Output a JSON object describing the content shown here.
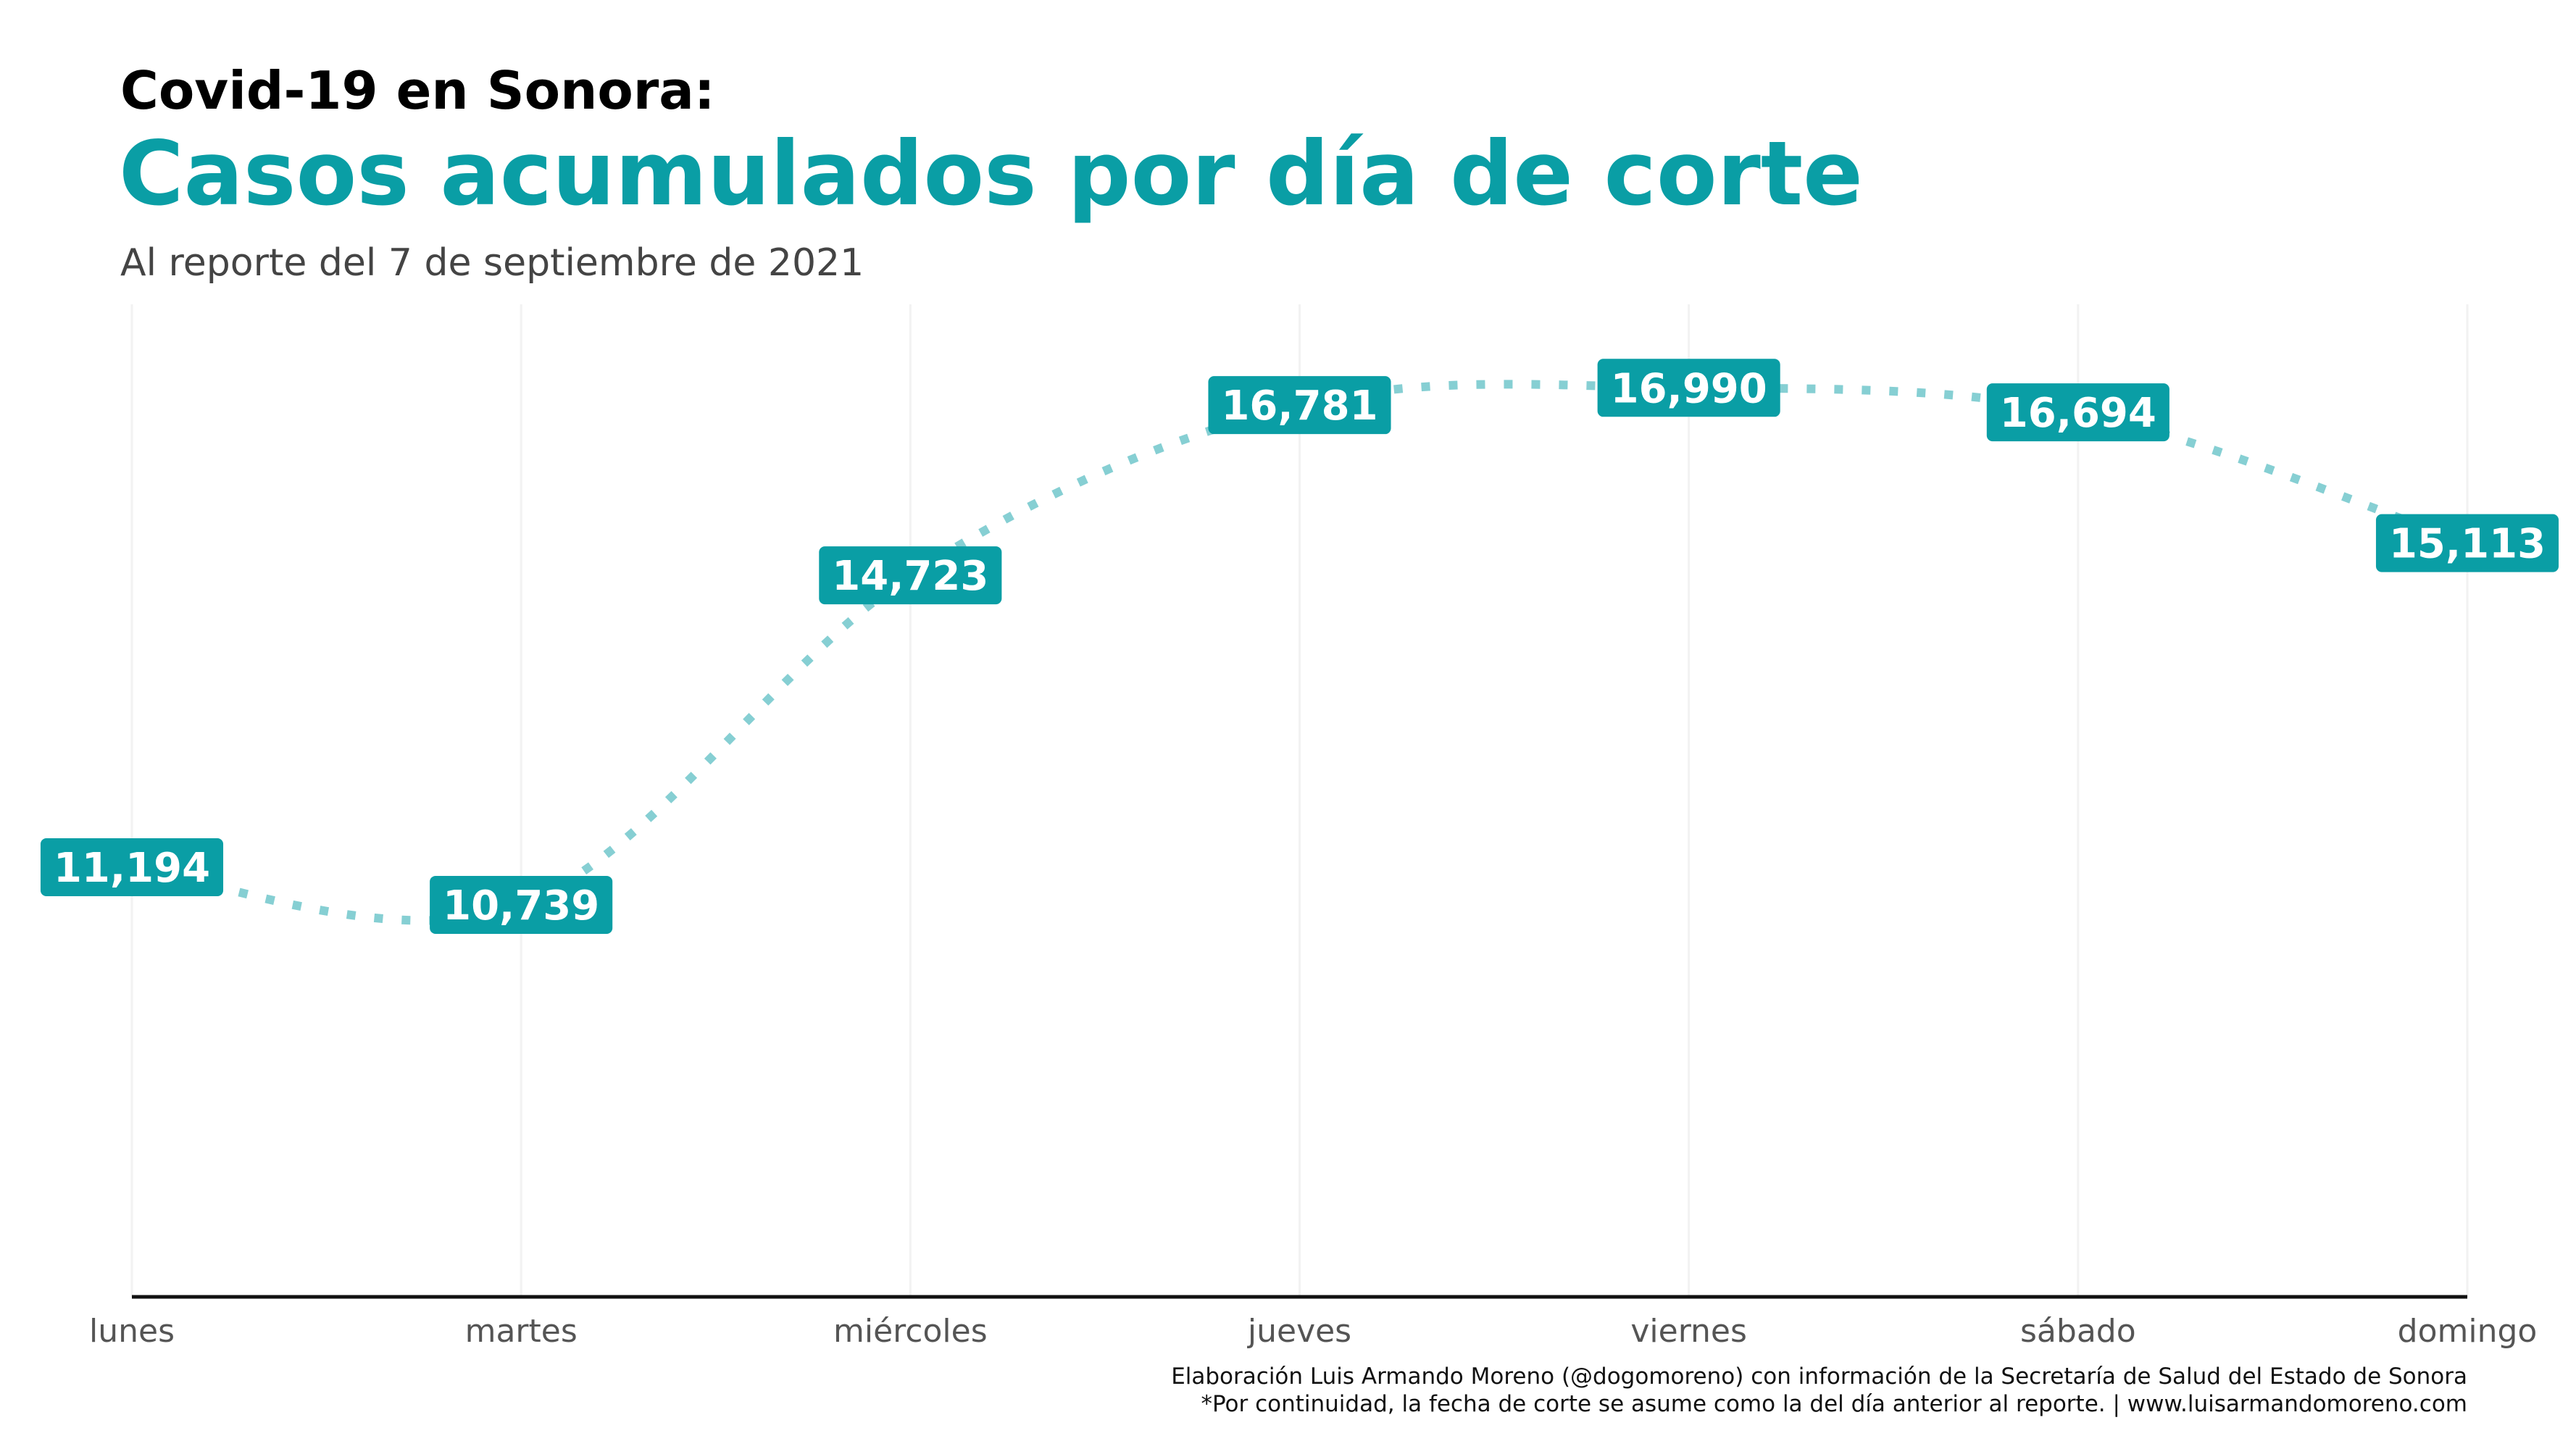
{
  "header": {
    "kicker": "Covid-19 en Sonora:",
    "title": "Casos acumulados por día de corte",
    "subtitle": "Al reporte del 7 de septiembre de 2021"
  },
  "caption": {
    "line1": "Elaboración Luis Armando Moreno (@dogomoreno) con información de la Secretaría de Salud del Estado de Sonora",
    "line2": "*Por continuidad, la fecha de corte se asume como la del día anterior al reporte. | www.luisarmandomoreno.com"
  },
  "colors": {
    "accent": "#0a9ea5",
    "line": "#86cfd3",
    "axis": "#111111",
    "grid": "#f2f2f2"
  },
  "chart_data": {
    "type": "line",
    "categories": [
      "lunes",
      "martes",
      "miércoles",
      "jueves",
      "viernes",
      "sábado",
      "domingo"
    ],
    "values": [
      11194,
      10739,
      14723,
      16781,
      16990,
      16694,
      15113
    ],
    "data_labels": [
      "11,194",
      "10,739",
      "14,723",
      "16,781",
      "16,990",
      "16,694",
      "15,113"
    ],
    "title": "Casos acumulados por día de corte",
    "subtitle": "Al reporte del 7 de septiembre de 2021",
    "xlabel": "",
    "ylabel": "",
    "ylim": [
      6000,
      18000
    ],
    "line_style": "dotted",
    "smooth": true,
    "grid": "vertical",
    "legend": "none"
  }
}
